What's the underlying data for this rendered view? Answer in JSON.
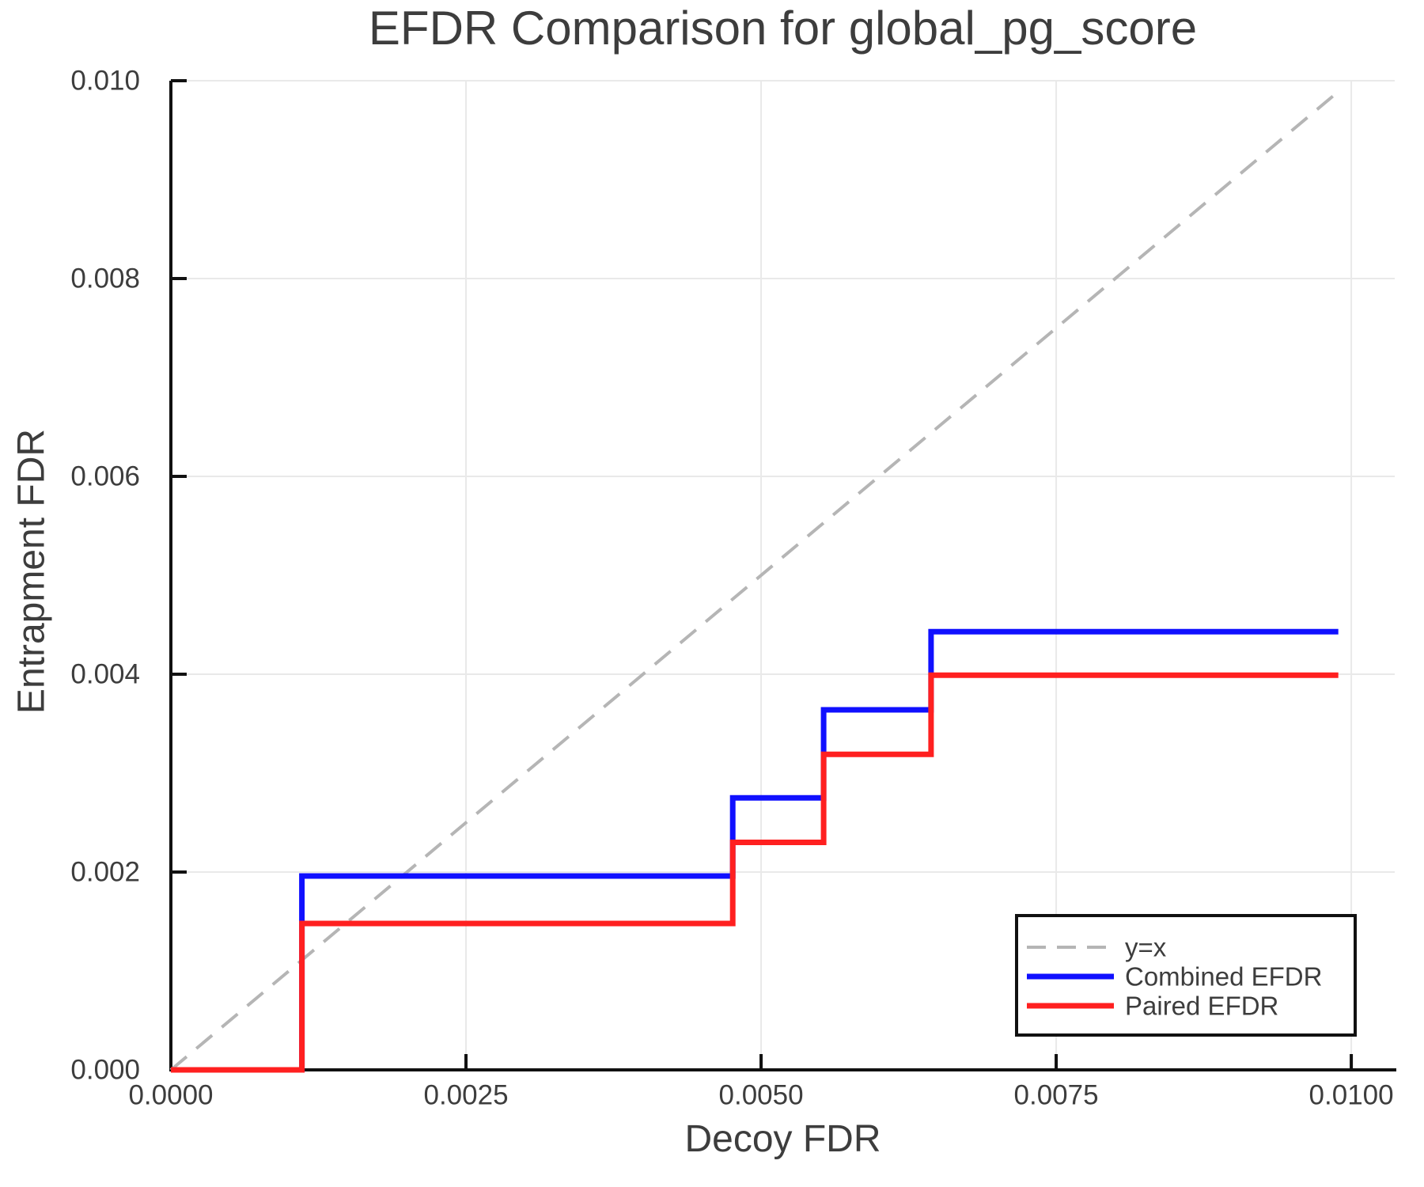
{
  "chart_data": {
    "type": "line",
    "subtype": "step",
    "title": "EFDR Comparison for global_pg_score",
    "xlabel": "Decoy FDR",
    "ylabel": "Entrapment FDR",
    "xlim": [
      0,
      0.010368
    ],
    "ylim": [
      0,
      0.01
    ],
    "grid": true,
    "xticks": {
      "values": [
        0.0,
        0.0025,
        0.005,
        0.0075,
        0.01
      ],
      "labels": [
        "0.0000",
        "0.0025",
        "0.0050",
        "0.0075",
        "0.0100"
      ]
    },
    "yticks": {
      "values": [
        0.0,
        0.002,
        0.004,
        0.006,
        0.008,
        0.01
      ],
      "labels": [
        "0.000",
        "0.002",
        "0.004",
        "0.006",
        "0.008",
        "0.010"
      ]
    },
    "legend": {
      "position": "bottom-right"
    },
    "series": [
      {
        "name": "y=x",
        "color": "#b5b5b5",
        "dash": true,
        "width": 4,
        "points": [
          [
            0,
            0
          ],
          [
            0.0099,
            0.0099
          ]
        ]
      },
      {
        "name": "Combined EFDR",
        "color": "#1010ff",
        "dash": false,
        "width": 7,
        "points": [
          [
            0,
            0
          ],
          [
            0.00111,
            0
          ],
          [
            0.00111,
            0.00196
          ],
          [
            0.00476,
            0.00196
          ],
          [
            0.00476,
            0.00275
          ],
          [
            0.00553,
            0.00275
          ],
          [
            0.00553,
            0.00364
          ],
          [
            0.00644,
            0.00364
          ],
          [
            0.00644,
            0.00443
          ],
          [
            0.00989,
            0.00443
          ]
        ]
      },
      {
        "name": "Paired EFDR",
        "color": "#ff2020",
        "dash": false,
        "width": 7,
        "points": [
          [
            0,
            0
          ],
          [
            0.00111,
            0
          ],
          [
            0.00111,
            0.00148
          ],
          [
            0.00476,
            0.00148
          ],
          [
            0.00476,
            0.0023
          ],
          [
            0.00553,
            0.0023
          ],
          [
            0.00553,
            0.00319
          ],
          [
            0.00644,
            0.00319
          ],
          [
            0.00644,
            0.00399
          ],
          [
            0.00989,
            0.00399
          ]
        ]
      }
    ],
    "palette": {
      "background": "#ffffff",
      "axis": "#111111",
      "grid": "#e9e9e9",
      "text": "#3d3d3d"
    }
  }
}
